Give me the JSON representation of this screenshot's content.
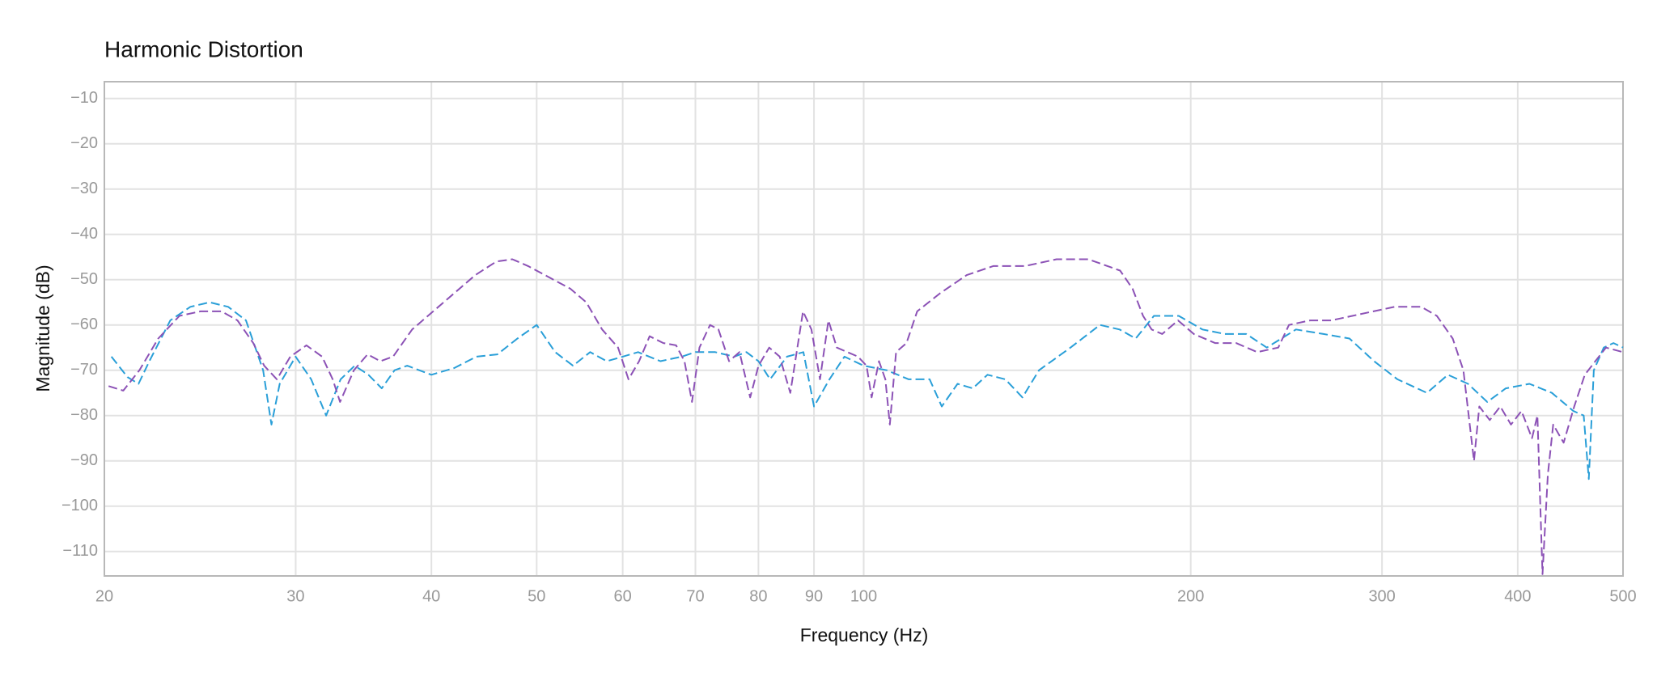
{
  "chart_data": {
    "type": "line",
    "title": "Harmonic Distortion",
    "xlabel": "Frequency (Hz)",
    "ylabel": "Magnitude (dB)",
    "xscale": "log",
    "grid": true,
    "xlim": [
      20,
      500
    ],
    "xticks": [
      20,
      30,
      40,
      50,
      60,
      70,
      80,
      90,
      100,
      200,
      300,
      400,
      500
    ],
    "ylim": [
      -115.4,
      -6.3
    ],
    "yticks": [
      {
        "value": -10,
        "label": "−10"
      },
      {
        "value": -20,
        "label": "−20"
      },
      {
        "value": -30,
        "label": "−30"
      },
      {
        "value": -40,
        "label": "−40"
      },
      {
        "value": -50,
        "label": "−50"
      },
      {
        "value": -60,
        "label": "−60"
      },
      {
        "value": -70,
        "label": "−70"
      },
      {
        "value": -80,
        "label": "−80"
      },
      {
        "value": -90,
        "label": "−90"
      },
      {
        "value": -100,
        "label": "−100"
      },
      {
        "value": -110,
        "label": "−110"
      }
    ],
    "series": [
      {
        "color": "#2a9fd8",
        "x": [
          20.3,
          21,
          21.5,
          22,
          23,
          24,
          25,
          26,
          27,
          28,
          28.5,
          29,
          30,
          31,
          32,
          33,
          34,
          35,
          36,
          37,
          38,
          40,
          42,
          44,
          46,
          48,
          50,
          52,
          54,
          56,
          58,
          60,
          62,
          65,
          68,
          70,
          73,
          76,
          78,
          80,
          82,
          85,
          88,
          90,
          93,
          96,
          100,
          105,
          110,
          115,
          118,
          122,
          126,
          130,
          135,
          140,
          145,
          155,
          165,
          172,
          178,
          185,
          195,
          205,
          215,
          225,
          235,
          250,
          265,
          280,
          295,
          310,
          330,
          345,
          360,
          375,
          390,
          410,
          430,
          450,
          460,
          465,
          470,
          480,
          490,
          500
        ],
        "values": [
          -67,
          -71.5,
          -73,
          -68,
          -59,
          -56,
          -55,
          -56,
          -59,
          -70,
          -82,
          -73,
          -67,
          -72,
          -80,
          -72,
          -69,
          -71,
          -74,
          -70,
          -69,
          -71,
          -69.5,
          -67,
          -66.5,
          -63,
          -60,
          -66,
          -69,
          -66,
          -68,
          -67,
          -66,
          -68,
          -67,
          -66,
          -66,
          -67,
          -66,
          -68,
          -72,
          -67,
          -66,
          -78,
          -72,
          -67,
          -69,
          -70,
          -72,
          -72,
          -78,
          -73,
          -74,
          -71,
          -72,
          -76,
          -70,
          -65,
          -60,
          -61,
          -63,
          -58,
          -58,
          -61,
          -62,
          -62,
          -65,
          -61,
          -62,
          -63,
          -68,
          -72,
          -75,
          -71,
          -73,
          -77,
          -74,
          -73,
          -75,
          -79,
          -80,
          -94,
          -70,
          -65,
          -64,
          -65
        ]
      },
      {
        "color": "#8c52b6",
        "x": [
          20.18,
          20.82,
          21.54,
          22.42,
          23.45,
          24.52,
          25.64,
          26.52,
          27.42,
          28.06,
          28.83,
          29.66,
          30.69,
          31.73,
          32.45,
          32.96,
          33.94,
          34.94,
          35.9,
          36.88,
          38.4,
          40.15,
          41.98,
          43.9,
          45.91,
          47.48,
          49.1,
          51.35,
          53.7,
          55.54,
          57.44,
          59.41,
          60.74,
          62.12,
          63.52,
          65.4,
          67.19,
          68.4,
          69.5,
          70.6,
          72.2,
          73.51,
          75.17,
          76.86,
          78.61,
          80.02,
          81.85,
          83.7,
          85.59,
          87.93,
          89.52,
          91.15,
          92.79,
          94.46,
          96.6,
          98.8,
          100.6,
          101.7,
          103.3,
          104.7,
          105.7,
          107.1,
          109.5,
          112,
          117.6,
          124.4,
          131.6,
          140.8,
          150.5,
          161,
          172.2,
          176.8,
          180.8,
          184.1,
          188.3,
          194.7,
          201.3,
          210.6,
          220.2,
          230.3,
          240.8,
          246.3,
          257.6,
          269.4,
          281.7,
          294.6,
          308.1,
          326,
          337,
          348.5,
          356.5,
          364.6,
          368.7,
          377,
          385.5,
          394.3,
          403.2,
          412.3,
          417,
          421.6,
          426.4,
          431.2,
          440.9,
          450.9,
          461.1,
          471.5,
          482.2,
          500
        ],
        "values": [
          -73.5,
          -74.5,
          -70,
          -63,
          -58,
          -57,
          -57,
          -59,
          -64,
          -69,
          -72,
          -67,
          -64.5,
          -67,
          -72,
          -77,
          -70,
          -66.5,
          -68,
          -67,
          -61,
          -57,
          -53,
          -49,
          -46,
          -45.5,
          -47,
          -49.5,
          -52,
          -55,
          -61,
          -65,
          -72,
          -68,
          -62.5,
          -64,
          -64.5,
          -68,
          -77,
          -65,
          -60,
          -61,
          -68,
          -66,
          -76,
          -69,
          -65,
          -67,
          -75,
          -57,
          -61,
          -72,
          -59,
          -65,
          -66,
          -67,
          -69,
          -76,
          -68,
          -72,
          -82,
          -66,
          -64,
          -57,
          -53,
          -49,
          -47,
          -47,
          -45.5,
          -45.5,
          -48,
          -52,
          -58,
          -61,
          -62,
          -59,
          -62,
          -64,
          -64,
          -66,
          -65,
          -60,
          -59,
          -59,
          -58,
          -57,
          -56,
          -56,
          -58,
          -63,
          -70,
          -90,
          -78,
          -81,
          -78,
          -82,
          -79,
          -85,
          -80,
          -115,
          -93,
          -82,
          -86,
          -78,
          -71,
          -68,
          -65,
          -66
        ]
      }
    ]
  }
}
